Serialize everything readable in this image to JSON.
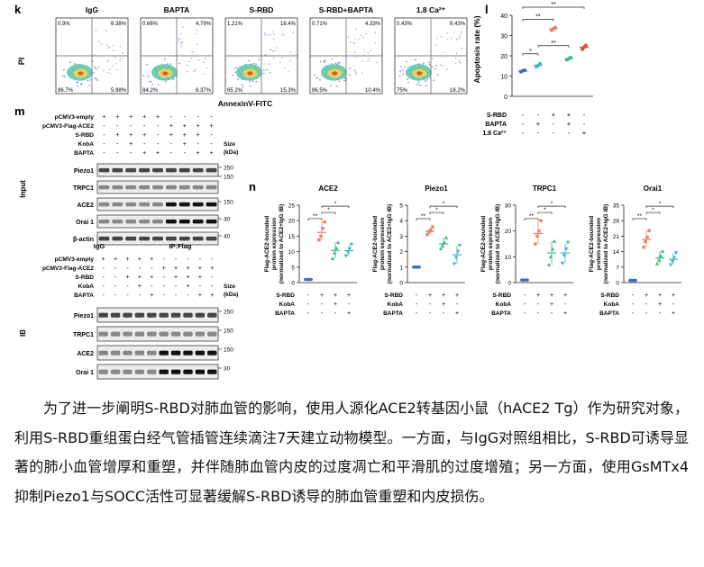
{
  "panel_k": {
    "letter": "k",
    "x_axis_label": "AnnexinV-FITC",
    "y_axis_label": "PI",
    "plots": [
      {
        "title": "IgG",
        "ul": "0.9%",
        "ur": "6.38%",
        "ll": "86.7%",
        "lr": "5.98%"
      },
      {
        "title": "BAPTA",
        "ul": "0.66%",
        "ur": "4.79%",
        "ll": "84.2%",
        "lr": "8.37%"
      },
      {
        "title": "S-RBD",
        "ul": "1.21%",
        "ur": "18.4%",
        "ll": "65.2%",
        "lr": "15.3%"
      },
      {
        "title": "S-RBD+BAPTA",
        "ul": "0.71%",
        "ur": "4.33%",
        "ll": "86.5%",
        "lr": "10.4%"
      },
      {
        "title": "1.8 Ca²⁺",
        "ul": "0.43%",
        "ur": "8.43%",
        "ll": "75%",
        "lr": "16.2%"
      }
    ]
  },
  "panel_l": {
    "letter": "l",
    "y_label": "Apoptosis rate (%)",
    "chart_data": {
      "type": "scatter",
      "ylabel": "Apoptosis rate (%)",
      "ylim": [
        0,
        40
      ],
      "yticks": [
        "0",
        "10",
        "20",
        "30",
        "40"
      ],
      "groups": [
        {
          "mean": 12.5,
          "color": "#3a6fc4",
          "points": [
            12.1,
            12.6,
            12.9
          ]
        },
        {
          "mean": 15.3,
          "color": "#39b6c4",
          "points": [
            14.6,
            15.2,
            16.0
          ]
        },
        {
          "mean": 33.3,
          "color": "#e8806d",
          "points": [
            32.6,
            33.4,
            34.0
          ]
        },
        {
          "mean": 18.5,
          "color": "#3fb88e",
          "points": [
            18.0,
            18.6,
            19.1
          ]
        },
        {
          "mean": 24.2,
          "color": "#d9514b",
          "points": [
            23.2,
            24.3,
            25.1
          ]
        }
      ],
      "significance": [
        "*",
        "**",
        "**",
        "**"
      ]
    },
    "row_labels": [
      "S-RBD",
      "BAPTA",
      "1.8 Ca²⁺"
    ],
    "rows": [
      [
        "-",
        "-",
        "+",
        "+",
        "-"
      ],
      [
        "-",
        "+",
        "-",
        "+",
        "-"
      ],
      [
        "-",
        "-",
        "-",
        "-",
        "+"
      ]
    ]
  },
  "panel_m": {
    "letter": "m",
    "input": {
      "side_label": "Input",
      "cond_labels": [
        "pCMV3-empty",
        "pCMV3-Flag-ACE2",
        "S-RBD",
        "KobA",
        "BAPTA"
      ],
      "cond_rows": [
        [
          "+",
          "+",
          "+",
          "+",
          "+",
          "-",
          "-",
          "-",
          "-"
        ],
        [
          "-",
          "-",
          "-",
          "-",
          "-",
          "+",
          "+",
          "+",
          "+"
        ],
        [
          "-",
          "+",
          "+",
          "+",
          "-",
          "+",
          "+",
          "+",
          "-"
        ],
        [
          "-",
          "-",
          "+",
          "-",
          "-",
          "-",
          "+",
          "-",
          "-"
        ],
        [
          "-",
          "-",
          "-",
          "+",
          "+",
          "-",
          "-",
          "+",
          "+"
        ]
      ],
      "size_header": "Size\n(kDa)",
      "size_l1": "Size",
      "size_l2": "(kDa)",
      "blots": [
        {
          "name": "Piezo1",
          "sizes": [
            "250",
            "150"
          ]
        },
        {
          "name": "TRPC1",
          "sizes": []
        },
        {
          "name": "ACE2",
          "sizes": [
            "150"
          ]
        },
        {
          "name": "Orai 1",
          "sizes": [
            "30"
          ]
        },
        {
          "name": "β-actin",
          "sizes": [
            "40"
          ]
        }
      ]
    },
    "ip": {
      "side_label": "IB",
      "igg_label": "IgG",
      "ipflag_label": "IP:Flag",
      "cond_labels": [
        "pCMV3-empty",
        "pCMV3-Flag-ACE2",
        "S-RBD",
        "KobA",
        "BAPTA"
      ],
      "cond_rows": [
        [
          "+",
          "+",
          "+",
          "+",
          "+",
          "-",
          "-",
          "-",
          "-",
          "-"
        ],
        [
          "-",
          "-",
          "-",
          "-",
          "-",
          "+",
          "+",
          "+",
          "+",
          "+"
        ],
        [
          "-",
          "-",
          "+",
          "+",
          "+",
          "-",
          "+",
          "+",
          "+",
          "-"
        ],
        [
          "-",
          "-",
          "-",
          "+",
          "-",
          "-",
          "-",
          "+",
          "-",
          "-"
        ],
        [
          "-",
          "-",
          "-",
          "-",
          "+",
          "-",
          "-",
          "-",
          "+",
          "+"
        ]
      ],
      "size_l1": "Size",
      "size_l2": "(kDa)",
      "blots": [
        {
          "name": "Piezo1",
          "sizes": [
            "250"
          ]
        },
        {
          "name": "TRPC1",
          "sizes": [
            "150"
          ]
        },
        {
          "name": "ACE2",
          "sizes": [
            "150"
          ]
        },
        {
          "name": "Orai 1",
          "sizes": [
            "30"
          ]
        }
      ]
    }
  },
  "panel_n": {
    "letter": "n",
    "y_label_lines": [
      "Flag-ACE2-bounded",
      "protein expression",
      "(normalized to ACE2+IgG IB)"
    ],
    "row_labels": [
      "S-RBD",
      "KobA",
      "BAPTA"
    ],
    "rows": [
      [
        "-",
        "+",
        "+",
        "+"
      ],
      [
        "-",
        "-",
        "+",
        "-"
      ],
      [
        "-",
        "-",
        "-",
        "+"
      ]
    ],
    "chart_data": [
      {
        "type": "scatter",
        "title": "ACE2",
        "ylim": [
          0,
          25
        ],
        "yticks": [
          "0",
          "5",
          "10",
          "15",
          "20",
          "25"
        ],
        "groups": [
          {
            "mean": 1,
            "points": [
              1,
              1,
              1,
              1
            ]
          },
          {
            "mean": 16.2,
            "points": [
              13.8,
              15.0,
              17.5,
              19.6
            ]
          },
          {
            "mean": 10.4,
            "points": [
              7.8,
              9.6,
              11.2,
              13.0
            ]
          },
          {
            "mean": 10.3,
            "points": [
              8.6,
              9.9,
              10.9,
              12.3
            ]
          }
        ],
        "significance": [
          "**",
          "*",
          "*"
        ]
      },
      {
        "type": "scatter",
        "title": "Piezo1",
        "ylim": [
          0,
          5
        ],
        "yticks": [
          "0",
          "1",
          "2",
          "3",
          "4",
          "5"
        ],
        "groups": [
          {
            "mean": 1,
            "points": [
              1,
              1,
              1,
              1
            ]
          },
          {
            "mean": 3.3,
            "points": [
              3.1,
              3.3,
              3.4,
              3.6
            ]
          },
          {
            "mean": 2.5,
            "points": [
              2.2,
              2.4,
              2.6,
              2.9
            ]
          },
          {
            "mean": 1.8,
            "points": [
              1.2,
              1.6,
              2.0,
              2.4
            ]
          }
        ],
        "significance": [
          "**",
          "*",
          "*"
        ]
      },
      {
        "type": "scatter",
        "title": "TRPC1",
        "ylim": [
          0,
          30
        ],
        "yticks": [
          "0",
          "10",
          "20",
          "30"
        ],
        "groups": [
          {
            "mean": 1,
            "points": [
              1,
              1,
              1,
              1
            ]
          },
          {
            "mean": 19,
            "points": [
              15,
              18,
              20,
              24
            ]
          },
          {
            "mean": 11.5,
            "points": [
              7,
              10,
              13,
              16
            ]
          },
          {
            "mean": 11.5,
            "points": [
              7.5,
              10.5,
              13,
              15.5
            ]
          }
        ],
        "significance": [
          "**",
          "*",
          "*"
        ]
      },
      {
        "type": "scatter",
        "title": "Orai1",
        "ylim": [
          0,
          35
        ],
        "yticks": [
          "0",
          "7",
          "14",
          "21",
          "28",
          "35"
        ],
        "groups": [
          {
            "mean": 1,
            "points": [
              1,
              1,
              1,
              1
            ]
          },
          {
            "mean": 19.5,
            "points": [
              16,
              18.5,
              20.5,
              23.5
            ]
          },
          {
            "mean": 11.2,
            "points": [
              8.6,
              10.2,
              12.2,
              14.2
            ]
          },
          {
            "mean": 10.5,
            "points": [
              8.0,
              9.6,
              11.2,
              13.4
            ]
          }
        ],
        "significance": [
          "**",
          "*",
          "*"
        ]
      }
    ],
    "colors": [
      "#3a6fc4",
      "#e8806d",
      "#3fb88e",
      "#39b6c4"
    ]
  },
  "paragraph": "为了进一步阐明S-RBD对肺血管的影响，使用人源化ACE2转基因小鼠（hACE2 Tg）作为研究对象，利用S-RBD重组蛋白经气管插管连续滴注7天建立动物模型。一方面，与IgG对照组相比，S-RBD可诱导显著的肺小血管增厚和重塑，并伴随肺血管内皮的过度凋亡和平滑肌的过度增殖；另一方面，使用GsMTx4抑制Piezo1与SOCC活性可显著缓解S-RBD诱导的肺血管重塑和内皮损伤。"
}
